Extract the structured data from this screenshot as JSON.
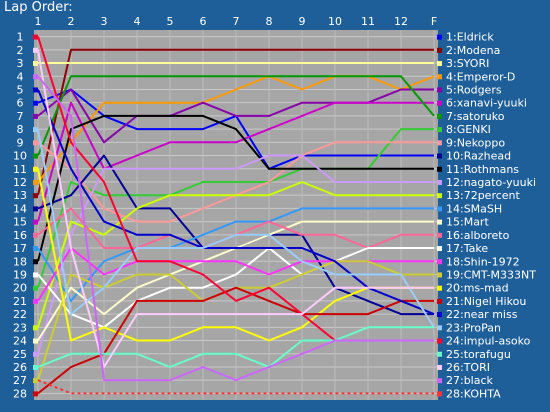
{
  "chart_data": {
    "type": "line",
    "title": "Lap Order:",
    "x": [
      "1",
      "2",
      "3",
      "4",
      "5",
      "6",
      "7",
      "8",
      "9",
      "10",
      "11",
      "12",
      "F"
    ],
    "y_ticks": [
      1,
      2,
      3,
      4,
      5,
      6,
      7,
      8,
      9,
      10,
      11,
      12,
      13,
      14,
      15,
      16,
      17,
      18,
      19,
      20,
      21,
      22,
      23,
      24,
      25,
      26,
      27,
      28
    ],
    "ylim": [
      1,
      28
    ],
    "y_inverted": true,
    "grid": true,
    "legend": "right",
    "colors": {
      "background": "#1f5f99",
      "plot_bg": "#a6a6a6",
      "grid": "#c8c8c8",
      "axis_text": "#ffffff",
      "legend_text": "#ffffff"
    },
    "series": [
      {
        "name": "1:Eldrick",
        "color": "#0000ff",
        "style": "solid",
        "values": [
          6,
          5,
          7,
          8,
          8,
          8,
          7,
          11,
          10,
          10,
          10,
          10,
          10
        ]
      },
      {
        "name": "2:Modena",
        "color": "#8b0000",
        "style": "solid",
        "values": [
          13,
          2,
          2,
          2,
          2,
          2,
          2,
          2,
          2,
          2,
          2,
          2,
          2
        ]
      },
      {
        "name": "3:SYORI",
        "color": "#ffff99",
        "style": "solid",
        "values": [
          3,
          3,
          3,
          3,
          3,
          3,
          3,
          3,
          3,
          3,
          3,
          3,
          3
        ]
      },
      {
        "name": "4:Emperor-D",
        "color": "#ff9900",
        "style": "solid",
        "values": [
          12,
          9,
          6,
          6,
          6,
          6,
          5,
          4,
          5,
          4,
          4,
          5,
          4
        ]
      },
      {
        "name": "5:Rodgers",
        "color": "#8800aa",
        "style": "solid",
        "values": [
          7,
          5,
          9,
          7,
          7,
          6,
          7,
          7,
          6,
          6,
          6,
          5,
          5
        ]
      },
      {
        "name": "6:xanavi-yuuki",
        "color": "#cc00cc",
        "style": "solid",
        "values": [
          15,
          6,
          11,
          10,
          9,
          9,
          9,
          8,
          7,
          6,
          6,
          6,
          6
        ]
      },
      {
        "name": "7:satoruko",
        "color": "#009900",
        "style": "solid",
        "values": [
          10,
          4,
          4,
          4,
          4,
          4,
          4,
          4,
          4,
          4,
          4,
          4,
          7
        ]
      },
      {
        "name": "8:GENKI",
        "color": "#33cc33",
        "style": "solid",
        "values": [
          20,
          12,
          13,
          13,
          13,
          12,
          12,
          12,
          11,
          11,
          11,
          8,
          8
        ]
      },
      {
        "name": "9:Nekoppo",
        "color": "#ff9999",
        "style": "solid",
        "values": [
          9,
          11,
          14,
          15,
          15,
          14,
          13,
          12,
          10,
          9,
          9,
          9,
          9
        ]
      },
      {
        "name": "10:Razhead",
        "color": "#000099",
        "style": "solid",
        "values": [
          14,
          13,
          10,
          14,
          14,
          17,
          17,
          16,
          16,
          20,
          21,
          22,
          22
        ]
      },
      {
        "name": "11:Rothmans",
        "color": "#000000",
        "style": "solid",
        "values": [
          18,
          8,
          7,
          7,
          7,
          7,
          8,
          11,
          11,
          11,
          11,
          11,
          11
        ]
      },
      {
        "name": "12:nagato-yuuki",
        "color": "#cc99ff",
        "style": "solid",
        "values": [
          25,
          16,
          11,
          11,
          11,
          11,
          11,
          10,
          10,
          12,
          12,
          12,
          12
        ]
      },
      {
        "name": "13:72percent",
        "color": "#ccff00",
        "style": "solid",
        "values": [
          23,
          15,
          16,
          14,
          13,
          13,
          13,
          13,
          12,
          13,
          13,
          13,
          13
        ]
      },
      {
        "name": "14:SMaSH",
        "color": "#3399ff",
        "style": "solid",
        "values": [
          17,
          21,
          18,
          17,
          17,
          16,
          15,
          15,
          14,
          14,
          14,
          14,
          14
        ]
      },
      {
        "name": "15:Mart",
        "color": "#ffffcc",
        "style": "solid",
        "values": [
          24,
          20,
          22,
          20,
          19,
          18,
          17,
          16,
          15,
          15,
          15,
          15,
          15
        ]
      },
      {
        "name": "16:alboreto",
        "color": "#ff6699",
        "style": "solid",
        "values": [
          16,
          14,
          17,
          17,
          16,
          17,
          16,
          15,
          16,
          16,
          17,
          16,
          16
        ]
      },
      {
        "name": "17:Take",
        "color": "#ffffff",
        "style": "solid",
        "values": [
          19,
          22,
          23,
          21,
          20,
          20,
          19,
          17,
          19,
          18,
          17,
          17,
          17
        ]
      },
      {
        "name": "18:Shin-1972",
        "color": "#ff33ff",
        "style": "solid",
        "values": [
          21,
          17,
          19,
          18,
          18,
          18,
          18,
          19,
          18,
          18,
          18,
          18,
          18
        ]
      },
      {
        "name": "19:CMT-M333NT",
        "color": "#cccc33",
        "style": "solid",
        "values": [
          27,
          19,
          20,
          19,
          19,
          21,
          20,
          20,
          19,
          18,
          18,
          19,
          19
        ]
      },
      {
        "name": "20:ms-mad",
        "color": "#ffff00",
        "style": "solid",
        "values": [
          11,
          24,
          23,
          24,
          24,
          23,
          23,
          24,
          23,
          21,
          20,
          20,
          20
        ]
      },
      {
        "name": "21:Nigel Hikou",
        "color": "#cc0000",
        "style": "solid",
        "values": [
          28,
          26,
          25,
          21,
          21,
          21,
          20,
          21,
          22,
          22,
          22,
          21,
          21
        ]
      },
      {
        "name": "22:near miss",
        "color": "#0000cc",
        "style": "solid",
        "values": [
          5,
          11,
          15,
          16,
          16,
          17,
          17,
          17,
          17,
          18,
          20,
          21,
          22
        ]
      },
      {
        "name": "23:ProPan",
        "color": "#99ccff",
        "style": "solid",
        "values": [
          8,
          22,
          20,
          17,
          17,
          17,
          16,
          16,
          18,
          19,
          19,
          19,
          23
        ]
      },
      {
        "name": "24:impul-asoko",
        "color": "#ff0033",
        "style": "solid",
        "values": [
          1,
          9,
          12,
          18,
          18,
          19,
          21,
          20,
          22,
          24,
          24,
          24,
          24
        ]
      },
      {
        "name": "25:torafugu",
        "color": "#66ffcc",
        "style": "solid",
        "values": [
          26,
          25,
          25,
          25,
          26,
          25,
          25,
          26,
          24,
          24,
          23,
          23,
          23
        ]
      },
      {
        "name": "26:TORI",
        "color": "#ffccff",
        "style": "solid",
        "values": [
          2,
          17,
          26,
          22,
          22,
          22,
          22,
          22,
          22,
          20,
          20,
          20,
          20
        ]
      },
      {
        "name": "27:black",
        "color": "#cc66ff",
        "style": "solid",
        "values": [
          4,
          7,
          27,
          27,
          27,
          26,
          27,
          26,
          25,
          24,
          24,
          24,
          24
        ]
      },
      {
        "name": "28:KOHTA",
        "color": "#ff3333",
        "style": "dashed",
        "values": [
          27,
          28,
          28,
          28,
          28,
          28,
          28,
          28,
          28,
          28,
          28,
          28,
          28
        ]
      }
    ]
  }
}
